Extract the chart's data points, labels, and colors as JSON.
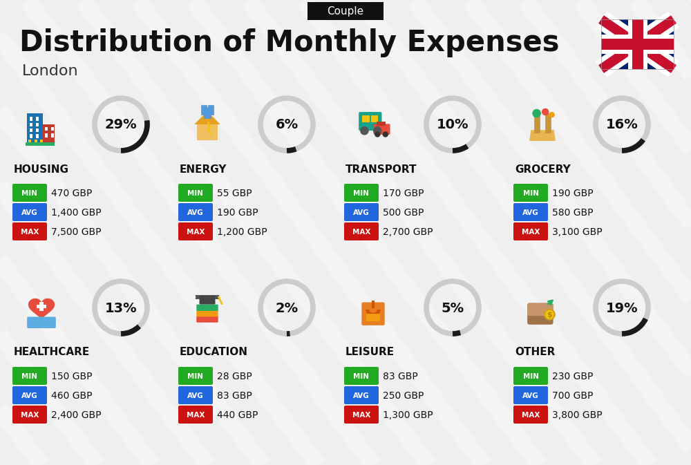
{
  "title": "Distribution of Monthly Expenses",
  "subtitle": "London",
  "header_tag": "Couple",
  "bg_color": "#efefef",
  "categories": [
    {
      "name": "HOUSING",
      "pct": 29,
      "min": "470 GBP",
      "avg": "1,400 GBP",
      "max": "7,500 GBP",
      "row": 0,
      "col": 0
    },
    {
      "name": "ENERGY",
      "pct": 6,
      "min": "55 GBP",
      "avg": "190 GBP",
      "max": "1,200 GBP",
      "row": 0,
      "col": 1
    },
    {
      "name": "TRANSPORT",
      "pct": 10,
      "min": "170 GBP",
      "avg": "500 GBP",
      "max": "2,700 GBP",
      "row": 0,
      "col": 2
    },
    {
      "name": "GROCERY",
      "pct": 16,
      "min": "190 GBP",
      "avg": "580 GBP",
      "max": "3,100 GBP",
      "row": 0,
      "col": 3
    },
    {
      "name": "HEALTHCARE",
      "pct": 13,
      "min": "150 GBP",
      "avg": "460 GBP",
      "max": "2,400 GBP",
      "row": 1,
      "col": 0
    },
    {
      "name": "EDUCATION",
      "pct": 2,
      "min": "28 GBP",
      "avg": "83 GBP",
      "max": "440 GBP",
      "row": 1,
      "col": 1
    },
    {
      "name": "LEISURE",
      "pct": 5,
      "min": "83 GBP",
      "avg": "250 GBP",
      "max": "1,300 GBP",
      "row": 1,
      "col": 2
    },
    {
      "name": "OTHER",
      "pct": 19,
      "min": "230 GBP",
      "avg": "700 GBP",
      "max": "3,800 GBP",
      "row": 1,
      "col": 3
    }
  ],
  "color_min": "#22aa22",
  "color_avg": "#2266dd",
  "color_max": "#cc1111",
  "color_circle_dark": "#1a1a1a",
  "color_circle_light": "#cccccc",
  "stripe_color": "#ffffff",
  "uk_blue": "#012169",
  "uk_red": "#C8102E",
  "uk_white": "#ffffff"
}
